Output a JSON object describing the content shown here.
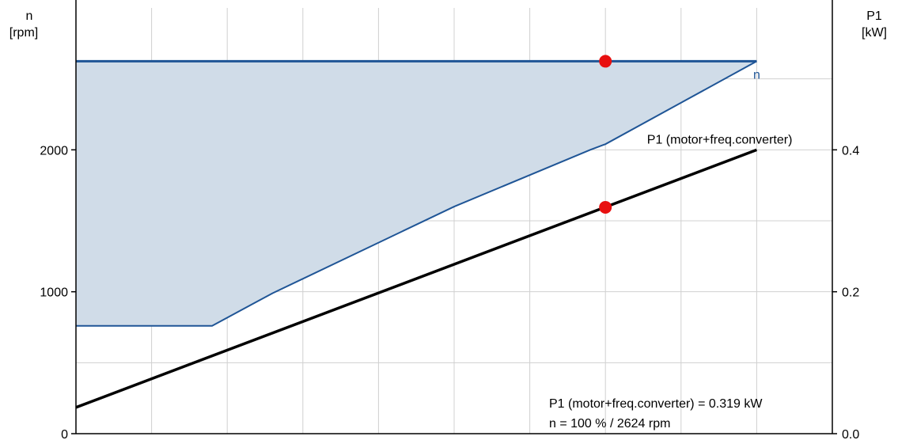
{
  "chart_data": {
    "type": "line",
    "left_axis": {
      "label_line1": "n",
      "label_line2": "[rpm]",
      "ylim": [
        0,
        3000
      ],
      "ticks": [
        0,
        1000,
        2000
      ],
      "tick_labels": [
        "0",
        "1000",
        "2000"
      ],
      "grid_values": [
        0,
        500,
        1000,
        1500,
        2000,
        2500
      ]
    },
    "right_axis": {
      "label_line1": "P1",
      "label_line2": "[kW]",
      "ylim": [
        0,
        0.6
      ],
      "ticks": [
        0,
        0.2,
        0.4
      ],
      "tick_labels": [
        "0.0",
        "0.2",
        "0.4"
      ]
    },
    "x_axis": {
      "xlim": [
        0,
        10
      ],
      "grid_values": [
        1,
        2,
        3,
        4,
        5,
        6,
        7,
        8,
        9
      ]
    },
    "series": [
      {
        "name": "n",
        "axis": "left",
        "color": "#1f5596",
        "fill_color": "#d0dce8",
        "upper_value": 2624,
        "lower_boundary_x": [
          0,
          1.8,
          2.6,
          5.0,
          6.8,
          7.0,
          9.0
        ],
        "lower_boundary_y": [
          760,
          760,
          990,
          1600,
          2000,
          2040,
          2624
        ],
        "x_end": 9.0
      },
      {
        "name": "P1 (motor+freq.converter)",
        "axis": "right",
        "color": "#000000",
        "x": [
          0,
          9.0
        ],
        "y": [
          0.037,
          0.4
        ]
      }
    ],
    "operating_points": [
      {
        "series": "n",
        "x": 7.0,
        "y": 2624,
        "axis": "left"
      },
      {
        "series": "P1 (motor+freq.converter)",
        "x": 7.0,
        "y": 0.319,
        "axis": "right"
      }
    ],
    "marker_color": "#e81010",
    "info_lines": [
      "P1 (motor+freq.converter) = 0.319 kW",
      "n = 100 % / 2624 rpm"
    ]
  }
}
